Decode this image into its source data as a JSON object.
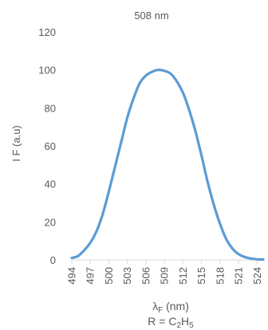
{
  "chart_data": {
    "type": "line",
    "title": "508 nm",
    "xlabel_main": "λ",
    "xlabel_sub": "F",
    "xlabel_unit": " (nm)",
    "ylabel": "I F (a.u)",
    "caption": {
      "prefix": "R = C",
      "sub1": "2",
      "mid": "H",
      "sub2": "5"
    },
    "xlim": [
      494,
      525
    ],
    "ylim": [
      0,
      120
    ],
    "yticks": [
      0,
      20,
      40,
      60,
      80,
      100,
      120
    ],
    "xticks": [
      494,
      497,
      500,
      503,
      506,
      509,
      512,
      515,
      518,
      521,
      524
    ],
    "grid": false,
    "legend": "none",
    "line_color": "#5b9bd5",
    "series": [
      {
        "x": [
          494,
          495,
          496,
          497,
          498,
          499,
          500,
          501,
          502,
          503,
          504,
          505,
          506,
          507,
          508,
          509,
          510,
          511,
          512,
          513,
          514,
          515,
          516,
          517,
          518,
          519,
          520,
          521,
          522,
          523,
          524,
          525
        ],
        "values": [
          1,
          2,
          5,
          9,
          15,
          24,
          36,
          49,
          62,
          75,
          85,
          93,
          97,
          99,
          100,
          99.5,
          98,
          94,
          88,
          79,
          68,
          55,
          41,
          29,
          19,
          11,
          6,
          3,
          1.5,
          0.7,
          0.3,
          0.2
        ]
      }
    ]
  }
}
